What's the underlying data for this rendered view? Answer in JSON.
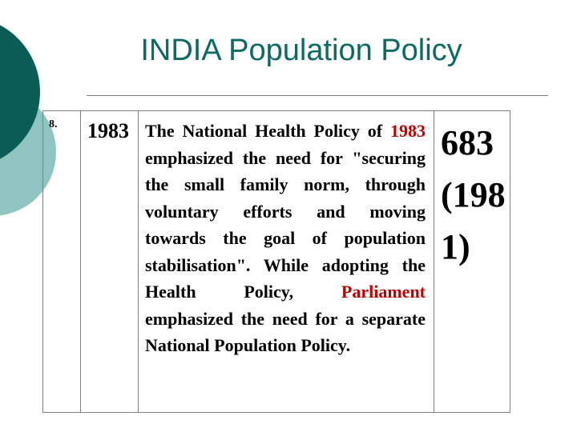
{
  "slide": {
    "title": "INDIA Population Policy",
    "colors": {
      "title": "#0b6b63",
      "accent_dark": "#0b5c57",
      "accent_light": "#8fc4c0",
      "highlight_red": "#c00000"
    }
  },
  "table": {
    "row": {
      "serial": "8.",
      "year": "1983",
      "description": {
        "part1": "The National Health Policy of",
        "part2_red": "1983",
        "part3": "emphasized the need for \"securing the small family norm, through voluntary efforts and moving towards the goal of population stabilisation\". While adopting the Health Policy,",
        "part4_red": "Parliament",
        "part5": "emphasized the need for a separate National Population Policy."
      },
      "count": "683 (1981)"
    }
  }
}
